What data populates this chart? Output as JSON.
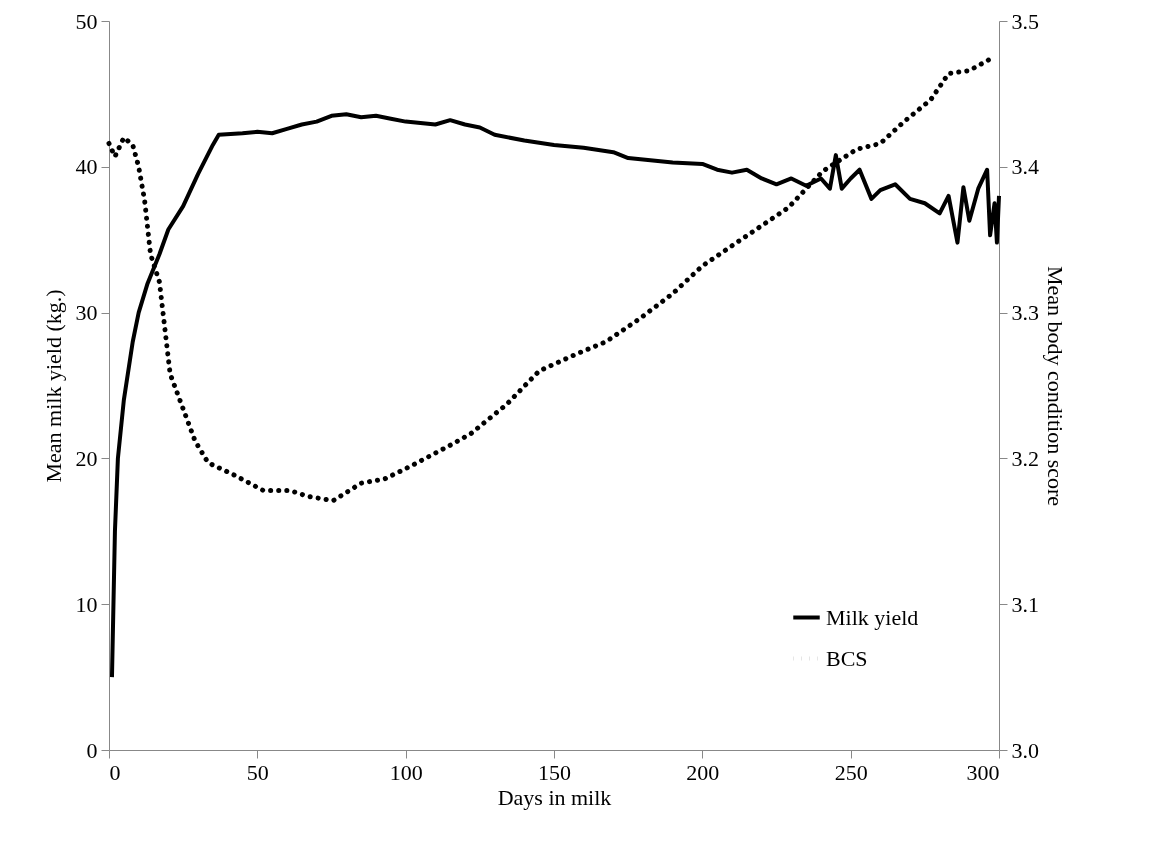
{
  "chart_data": {
    "type": "line",
    "xlabel": "Days in milk",
    "ylabel": "Mean milk yield (kg.)",
    "y2label": "Mean body condition score",
    "xlim": [
      0,
      300
    ],
    "xticks": [
      0,
      50,
      100,
      150,
      200,
      250,
      300
    ],
    "ylim": [
      0,
      50
    ],
    "yticks": [
      0,
      10,
      20,
      30,
      40,
      50
    ],
    "y2lim": [
      3,
      3.5
    ],
    "y2ticks": [
      {
        "value": 3,
        "label": "3.0"
      },
      3.1,
      3.2,
      3.3,
      3.4,
      {
        "value": 3.5,
        "label": "3.5"
      }
    ],
    "grid": false,
    "legend": "bottom right",
    "marker": "none",
    "series": [
      {
        "name": "Milk yield",
        "color": "#000000",
        "line_style": "solid",
        "x": [
          1,
          2,
          3,
          5,
          8,
          10,
          13,
          17,
          20,
          25,
          30,
          35,
          37,
          45,
          50,
          55,
          60,
          65,
          70,
          75,
          80,
          85,
          90,
          95,
          100,
          110,
          115,
          120,
          125,
          130,
          140,
          150,
          160,
          170,
          175,
          180,
          190,
          200,
          205,
          210,
          215,
          220,
          225,
          230,
          235,
          240,
          243,
          245,
          247,
          250,
          253,
          257,
          260,
          265,
          270,
          275,
          280,
          283,
          286,
          288,
          290,
          293,
          296,
          297,
          298.5,
          299.3,
          300
        ],
        "values": [
          5,
          15,
          20,
          24,
          28,
          30,
          32,
          34,
          35.7,
          37.3,
          39.5,
          41.5,
          42.2,
          42.3,
          42.4,
          42.3,
          42.6,
          42.9,
          43.1,
          43.5,
          43.6,
          43.4,
          43.5,
          43.3,
          43.1,
          42.9,
          43.2,
          42.9,
          42.7,
          42.2,
          41.8,
          41.5,
          41.3,
          41,
          40.6,
          40.5,
          40.3,
          40.2,
          39.8,
          39.6,
          39.8,
          39.2,
          38.8,
          39.2,
          38.7,
          39.2,
          38.5,
          40.8,
          38.5,
          39.2,
          39.8,
          37.8,
          38.4,
          38.8,
          37.8,
          37.5,
          36.8,
          38,
          34.8,
          38.6,
          36.3,
          38.5,
          39.8,
          35.3,
          37.5,
          34.8,
          38
        ]
      },
      {
        "name": "BCS",
        "color": "#000000",
        "line_style": "dotted",
        "axis": "y2",
        "x": [
          0,
          2,
          5,
          8,
          10,
          12,
          14,
          17,
          20.6,
          29,
          33.4,
          41.8,
          52,
          61,
          67,
          75.5,
          85,
          93,
          102,
          115,
          122,
          134,
          145,
          158,
          167.5,
          179,
          190,
          200,
          213,
          229,
          240.6,
          252,
          260,
          268,
          277,
          283,
          290,
          298
        ],
        "values": [
          3.416,
          3.407,
          3.42,
          3.415,
          3.4,
          3.377,
          3.34,
          3.321,
          3.258,
          3.212,
          3.197,
          3.189,
          3.178,
          3.178,
          3.174,
          3.171,
          3.183,
          3.186,
          3.195,
          3.209,
          3.217,
          3.237,
          3.26,
          3.272,
          3.28,
          3.296,
          3.313,
          3.332,
          3.35,
          3.372,
          3.397,
          3.412,
          3.416,
          3.431,
          3.446,
          3.464,
          3.466,
          3.475
        ]
      }
    ]
  }
}
